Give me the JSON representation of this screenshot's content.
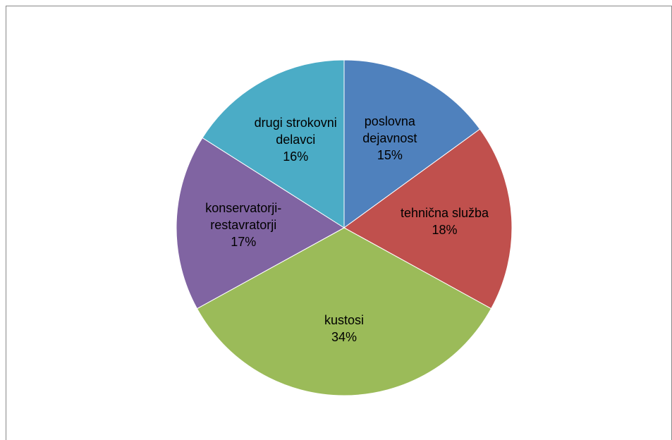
{
  "chart_data": {
    "type": "pie",
    "categories": [
      "poslovna dejavnost",
      "tehnična služba",
      "kustosi",
      "konservatorji-restavratorji",
      "drugi strokovni delavci"
    ],
    "values": [
      15,
      18,
      34,
      17,
      16
    ],
    "value_labels": [
      "15%",
      "18%",
      "34%",
      "17%",
      "16%"
    ],
    "colors": [
      "#4f81bd",
      "#c0504d",
      "#9bbb59",
      "#8064a2",
      "#4bacc6"
    ]
  }
}
